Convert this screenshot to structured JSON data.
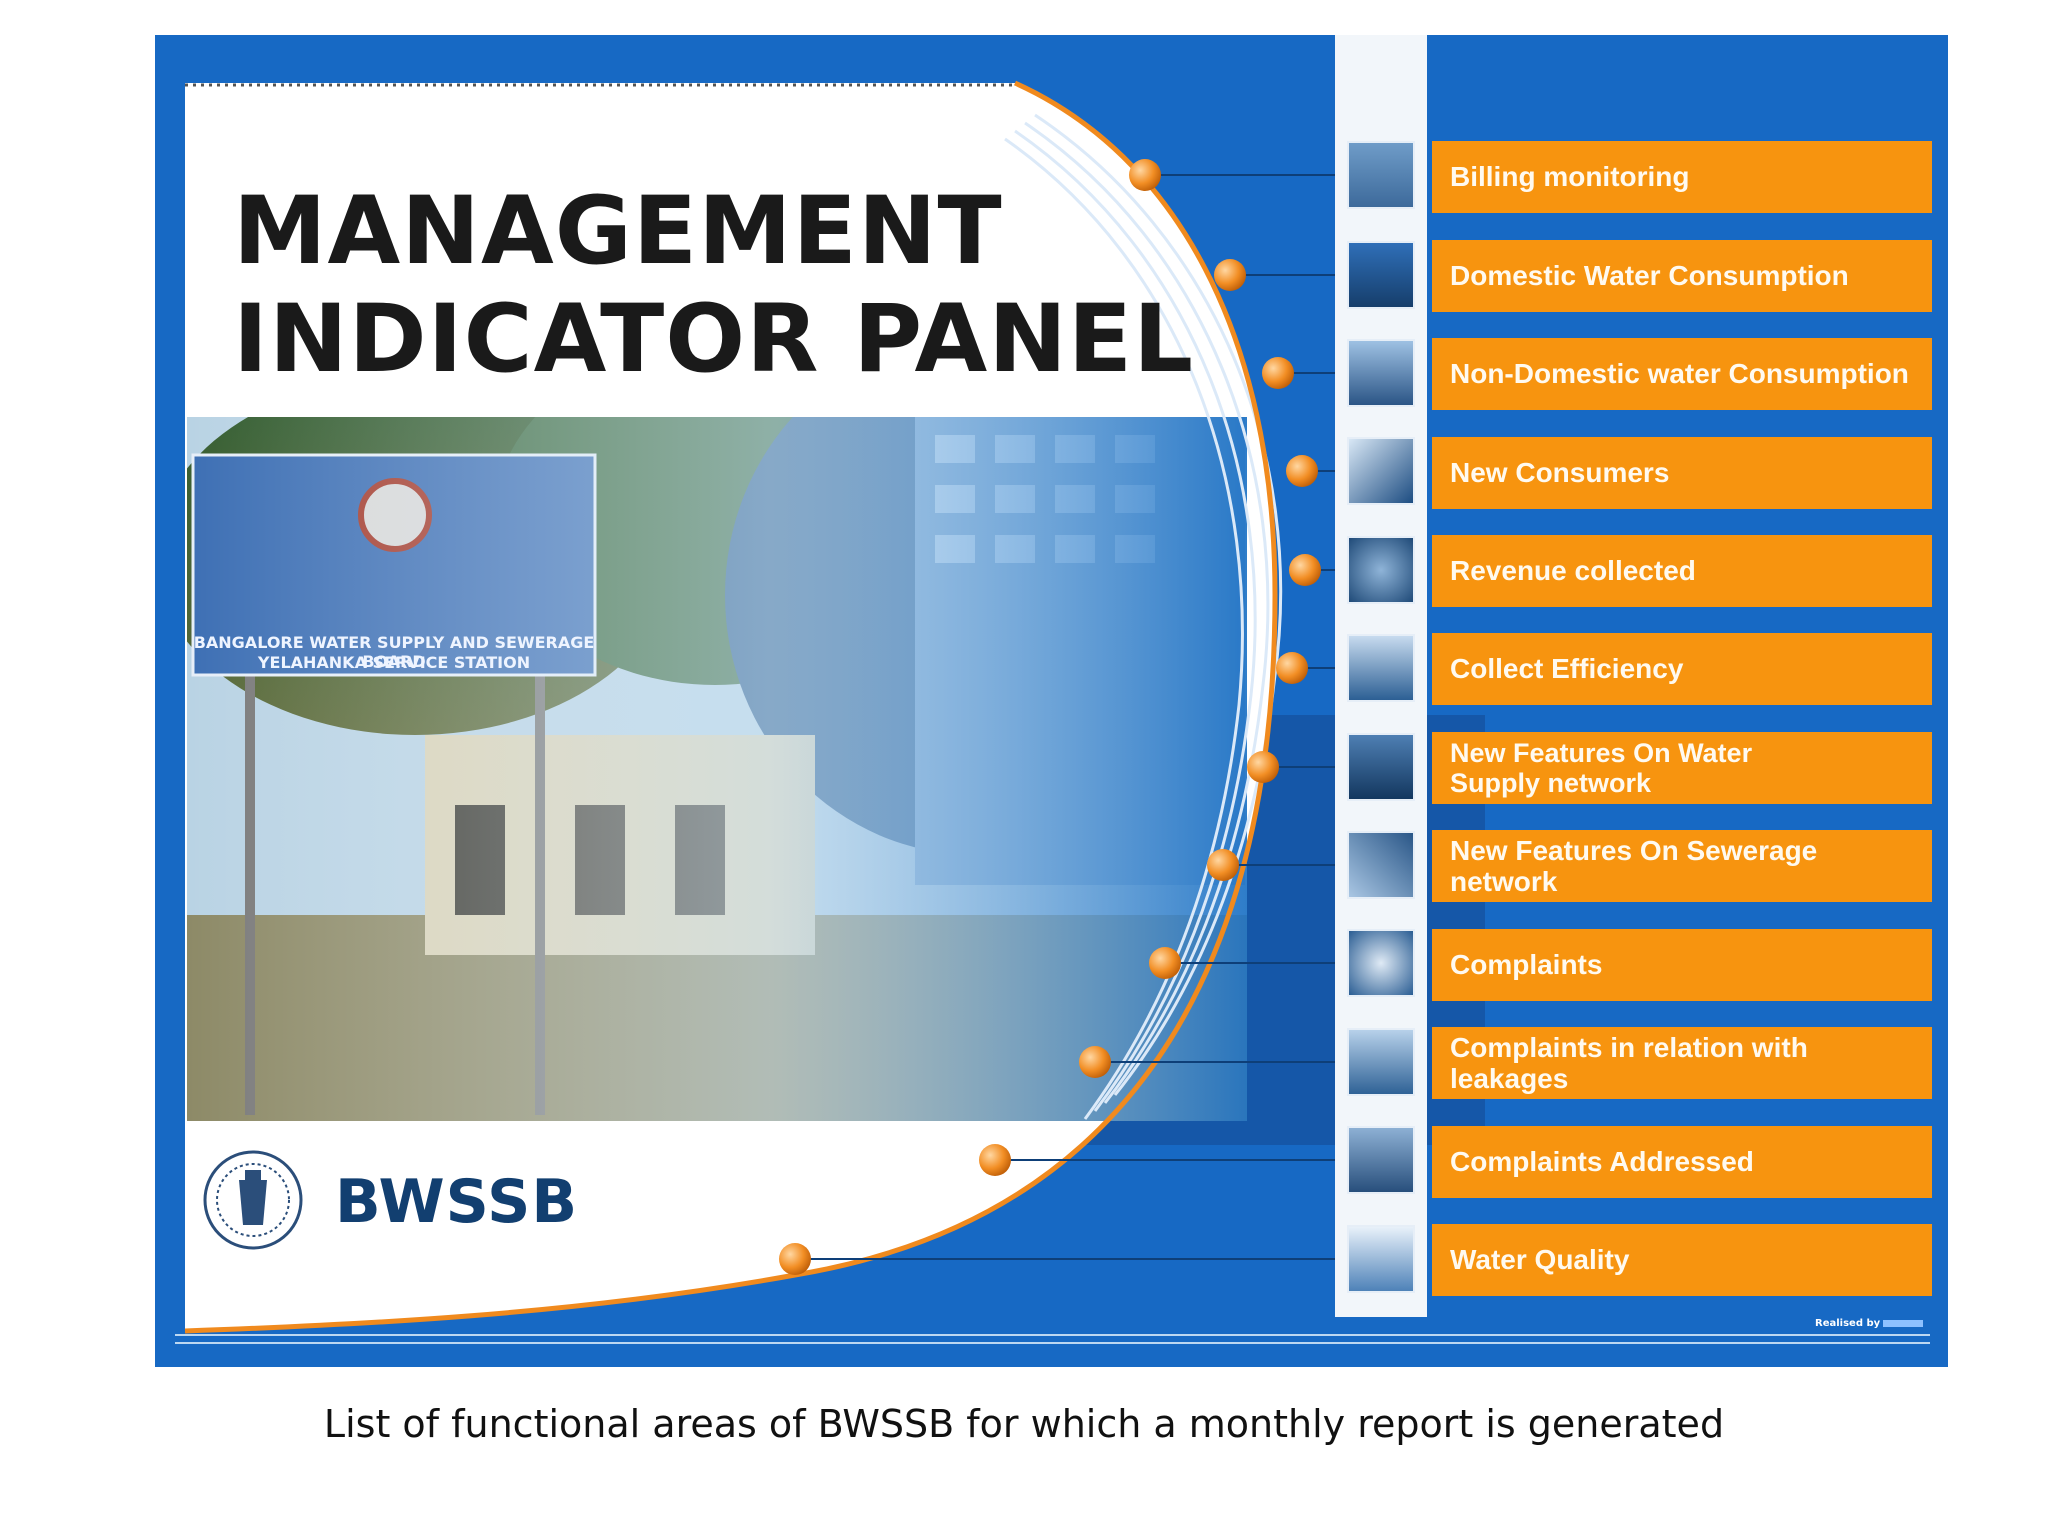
{
  "panel": {
    "title_line1": "MANAGEMENT",
    "title_line2": "INDICATOR PANEL",
    "brand": "BWSSB",
    "realised_by": "Realised by"
  },
  "photo": {
    "sign_line1": "BANGALORE WATER SUPPLY AND SEWERAGE BOARD",
    "sign_line2": "YELAHANKA SERVICE STATION"
  },
  "menu": {
    "items": [
      {
        "label": "Billing monitoring",
        "icon": "billing-icon"
      },
      {
        "label": "Domestic Water Consumption",
        "icon": "domestic-water-icon"
      },
      {
        "label": "Non-Domestic water Consumption",
        "icon": "industry-icon"
      },
      {
        "label": "New Consumers",
        "icon": "consumers-icon"
      },
      {
        "label": "Revenue collected",
        "icon": "revenue-icon"
      },
      {
        "label": "Collect Efficiency",
        "icon": "calculator-icon"
      },
      {
        "label_line1": "New Features On Water",
        "label_line2": "Supply network",
        "icon": "water-network-icon"
      },
      {
        "label": "New Features On Sewerage network",
        "icon": "sewerage-icon"
      },
      {
        "label": "Complaints",
        "icon": "complaints-icon"
      },
      {
        "label": "Complaints in relation with leakages",
        "icon": "leakage-icon"
      },
      {
        "label": "Complaints Addressed",
        "icon": "worker-icon"
      },
      {
        "label": "Water Quality",
        "icon": "water-drop-icon"
      }
    ]
  },
  "caption": "List of functional areas of BWSSB for which a monthly report is generated",
  "colors": {
    "panel_blue": "#1769c4",
    "menu_orange": "#f7940f",
    "title_black": "#1a1a1a",
    "brand_navy": "#123f70"
  }
}
